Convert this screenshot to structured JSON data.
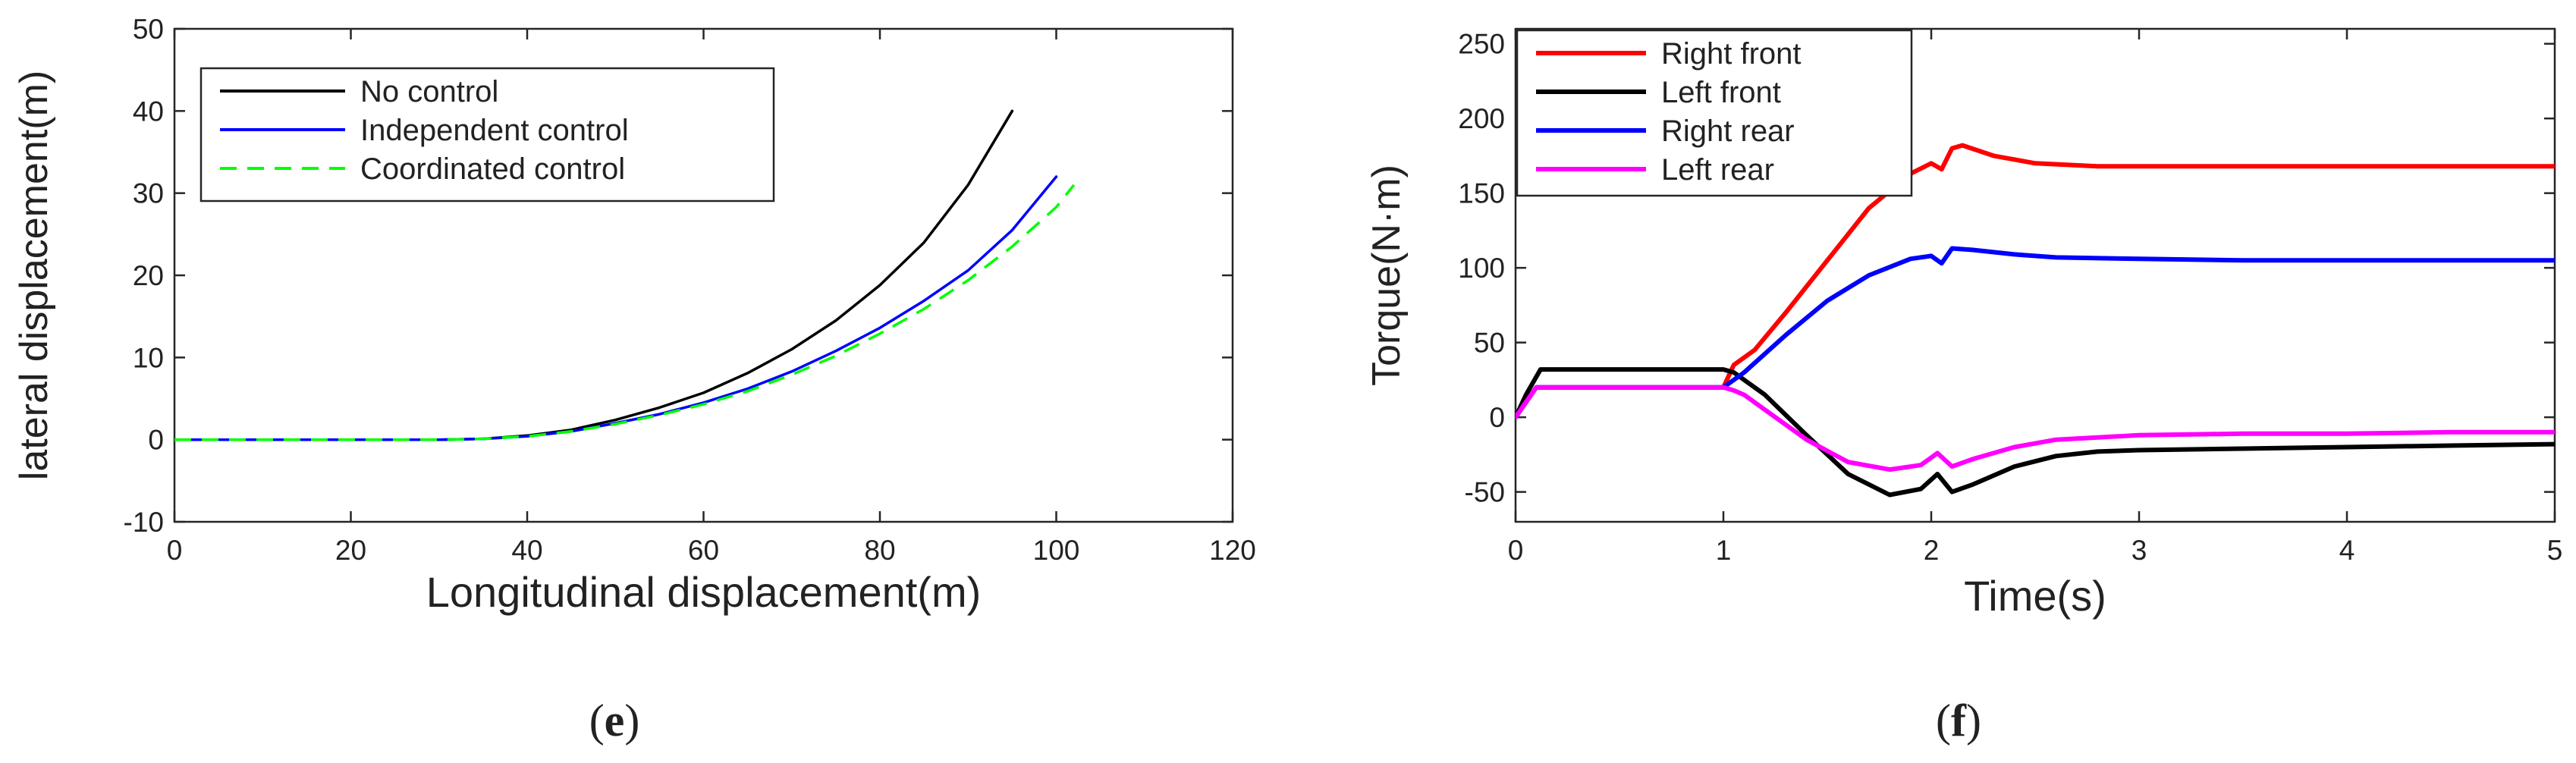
{
  "chart_data": [
    {
      "type": "line",
      "panel_label": "e",
      "title": "",
      "xlabel": "Longitudinal displacement(m)",
      "ylabel": "lateral displacement(m)",
      "xlim": [
        0,
        120
      ],
      "ylim": [
        -10,
        50
      ],
      "xticks": [
        0,
        20,
        40,
        60,
        80,
        100,
        120
      ],
      "yticks": [
        -10,
        0,
        10,
        20,
        30,
        40,
        50
      ],
      "grid": false,
      "legend_position": "top-left",
      "series": [
        {
          "name": "No control",
          "color": "#000000",
          "style": "solid",
          "x": [
            0,
            10,
            20,
            30,
            35,
            40,
            45,
            50,
            55,
            60,
            65,
            70,
            75,
            80,
            85,
            90,
            95
          ],
          "y": [
            0,
            0,
            0,
            0,
            0.1,
            0.5,
            1.2,
            2.4,
            3.9,
            5.7,
            8.1,
            11.0,
            14.5,
            18.8,
            24.0,
            31.0,
            40.0
          ]
        },
        {
          "name": "Independent control",
          "color": "#0000ff",
          "style": "solid",
          "x": [
            0,
            10,
            20,
            30,
            35,
            40,
            45,
            50,
            55,
            60,
            65,
            70,
            75,
            80,
            85,
            90,
            95,
            100
          ],
          "y": [
            0,
            0,
            0,
            0,
            0.1,
            0.4,
            1.0,
            2.0,
            3.1,
            4.5,
            6.2,
            8.3,
            10.8,
            13.6,
            16.9,
            20.6,
            25.5,
            32.0
          ]
        },
        {
          "name": "Coordinated control",
          "color": "#00ff00",
          "style": "dashed",
          "x": [
            0,
            10,
            20,
            30,
            35,
            40,
            45,
            50,
            55,
            60,
            65,
            70,
            75,
            80,
            85,
            90,
            95,
            100,
            102
          ],
          "y": [
            0,
            0,
            0,
            0,
            0.1,
            0.4,
            1.0,
            1.9,
            3.0,
            4.3,
            5.9,
            7.9,
            10.2,
            12.9,
            15.9,
            19.4,
            23.5,
            28.3,
            31.0
          ]
        }
      ]
    },
    {
      "type": "line",
      "panel_label": "f",
      "title": "",
      "xlabel": "Time(s)",
      "ylabel": "Torque(N·m)",
      "xlim": [
        0,
        5
      ],
      "ylim": [
        -70,
        260
      ],
      "xticks": [
        0,
        1,
        2,
        3,
        4,
        5
      ],
      "yticks": [
        -50,
        0,
        50,
        100,
        150,
        200,
        250
      ],
      "grid": false,
      "legend_position": "top-left",
      "series": [
        {
          "name": "Right front",
          "color": "#ff0000",
          "style": "solid",
          "x": [
            0,
            0.05,
            0.1,
            1.0,
            1.05,
            1.15,
            1.3,
            1.5,
            1.7,
            1.9,
            2.0,
            2.05,
            2.1,
            2.15,
            2.3,
            2.5,
            2.8,
            3.0,
            3.5,
            4.0,
            4.5,
            5.0
          ],
          "y": [
            0,
            10,
            20,
            20,
            35,
            45,
            70,
            105,
            140,
            163,
            170,
            166,
            180,
            182,
            175,
            170,
            168,
            168,
            168,
            168,
            168,
            168
          ]
        },
        {
          "name": "Left front",
          "color": "#000000",
          "style": "solid",
          "x": [
            0,
            0.05,
            0.12,
            1.0,
            1.05,
            1.1,
            1.2,
            1.4,
            1.6,
            1.8,
            1.95,
            2.03,
            2.1,
            2.2,
            2.4,
            2.6,
            2.8,
            3.0,
            3.5,
            4.0,
            4.5,
            5.0
          ],
          "y": [
            0,
            15,
            32,
            32,
            30,
            25,
            15,
            -12,
            -38,
            -52,
            -48,
            -38,
            -50,
            -45,
            -33,
            -26,
            -23,
            -22,
            -21,
            -20,
            -19,
            -18
          ]
        },
        {
          "name": "Right rear",
          "color": "#0000ff",
          "style": "solid",
          "x": [
            0,
            0.05,
            0.1,
            1.0,
            1.05,
            1.1,
            1.3,
            1.5,
            1.7,
            1.9,
            2.0,
            2.05,
            2.1,
            2.2,
            2.4,
            2.6,
            3.0,
            3.5,
            4.0,
            4.5,
            5.0
          ],
          "y": [
            0,
            10,
            20,
            20,
            25,
            30,
            55,
            78,
            95,
            106,
            108,
            103,
            113,
            112,
            109,
            107,
            106,
            105,
            105,
            105,
            105
          ]
        },
        {
          "name": "Left rear",
          "color": "#ff00ff",
          "style": "solid",
          "x": [
            0,
            0.05,
            0.1,
            1.0,
            1.05,
            1.1,
            1.2,
            1.4,
            1.6,
            1.8,
            1.95,
            2.03,
            2.1,
            2.2,
            2.4,
            2.6,
            3.0,
            3.5,
            4.0,
            4.5,
            5.0
          ],
          "y": [
            0,
            10,
            20,
            20,
            18,
            15,
            5,
            -15,
            -30,
            -35,
            -32,
            -24,
            -33,
            -28,
            -20,
            -15,
            -12,
            -11,
            -11,
            -10,
            -10
          ]
        }
      ]
    }
  ],
  "captions": {
    "e": "e",
    "f": "f"
  }
}
